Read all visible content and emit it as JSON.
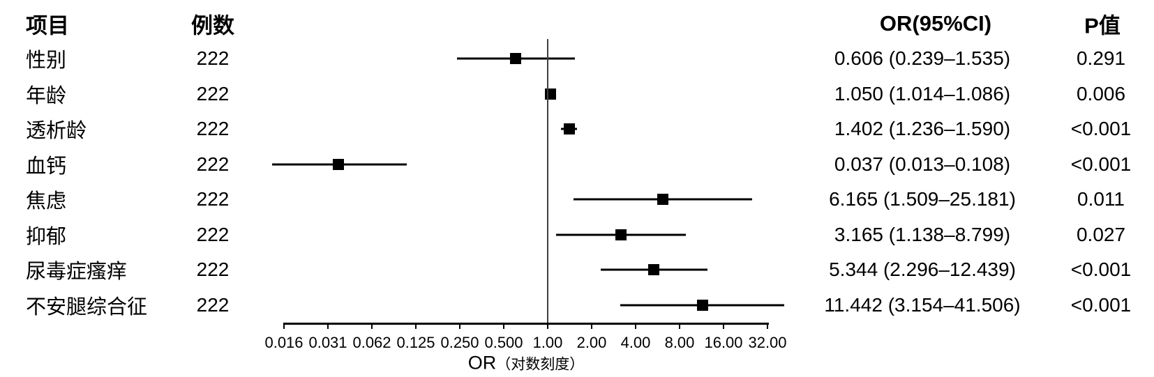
{
  "columns": {
    "item": "项目",
    "n": "例数",
    "or_ci": "OR(95%CI)",
    "p": "P值"
  },
  "rows": [
    {
      "label": "性别",
      "n": "222",
      "or": 0.606,
      "low": 0.239,
      "high": 1.535,
      "or_ci_text": "0.606 (0.239–1.535)",
      "p": "0.291"
    },
    {
      "label": "年龄",
      "n": "222",
      "or": 1.05,
      "low": 1.014,
      "high": 1.086,
      "or_ci_text": "1.050 (1.014–1.086)",
      "p": "0.006"
    },
    {
      "label": "透析龄",
      "n": "222",
      "or": 1.402,
      "low": 1.236,
      "high": 1.59,
      "or_ci_text": "1.402 (1.236–1.590)",
      "p": "<0.001"
    },
    {
      "label": "血钙",
      "n": "222",
      "or": 0.037,
      "low": 0.013,
      "high": 0.108,
      "or_ci_text": "0.037 (0.013–0.108)",
      "p": "<0.001"
    },
    {
      "label": "焦虑",
      "n": "222",
      "or": 6.165,
      "low": 1.509,
      "high": 25.181,
      "or_ci_text": "6.165 (1.509–25.181)",
      "p": "0.011"
    },
    {
      "label": "抑郁",
      "n": "222",
      "or": 3.165,
      "low": 1.138,
      "high": 8.799,
      "or_ci_text": "3.165 (1.138–8.799)",
      "p": "0.027"
    },
    {
      "label": "尿毒症瘙痒",
      "n": "222",
      "or": 5.344,
      "low": 2.296,
      "high": 12.439,
      "or_ci_text": "5.344 (2.296–12.439)",
      "p": "<0.001"
    },
    {
      "label": "不安腿综合征",
      "n": "222",
      "or": 11.442,
      "low": 3.154,
      "high": 41.506,
      "or_ci_text": "11.442 (3.154–41.506)",
      "p": "<0.001"
    }
  ],
  "axis": {
    "tick_values": [
      0.015625,
      0.03125,
      0.0625,
      0.125,
      0.25,
      0.5,
      1,
      2,
      4,
      8,
      16,
      32
    ],
    "tick_labels": [
      "0.016",
      "0.031",
      "0.062",
      "0.125",
      "0.250",
      "0.500",
      "1.00",
      "2.00",
      "4.00",
      "8.00",
      "16.00",
      "32.00"
    ],
    "title_main": "OR",
    "title_sub": "（对数刻度）",
    "reference": 1
  },
  "colors": {
    "marker": "#000000",
    "ci_line": "#000000",
    "reference_line": "#3f3f3f",
    "text": "#000000",
    "background": "#ffffff"
  },
  "chart_data": {
    "type": "scatter",
    "variant": "forest-plot",
    "title": "",
    "columns": [
      "项目",
      "例数",
      "OR(95%CI)",
      "P值"
    ],
    "categories": [
      "性别",
      "年龄",
      "透析龄",
      "血钙",
      "焦虑",
      "抑郁",
      "尿毒症瘙痒",
      "不安腿综合征"
    ],
    "n_cases": [
      222,
      222,
      222,
      222,
      222,
      222,
      222,
      222
    ],
    "or_values": [
      0.606,
      1.05,
      1.402,
      0.037,
      6.165,
      3.165,
      5.344,
      11.442
    ],
    "ci_low": [
      0.239,
      1.014,
      1.236,
      0.013,
      1.509,
      1.138,
      2.296,
      3.154
    ],
    "ci_high": [
      1.535,
      1.086,
      1.59,
      0.108,
      25.181,
      8.799,
      12.439,
      41.506
    ],
    "p_values": [
      "0.291",
      "0.006",
      "<0.001",
      "<0.001",
      "0.011",
      "0.027",
      "<0.001",
      "<0.001"
    ],
    "xlabel": "OR（对数刻度）",
    "x_scale": "log2",
    "x_ticks": [
      0.016,
      0.031,
      0.062,
      0.125,
      0.25,
      0.5,
      1.0,
      2.0,
      4.0,
      8.0,
      16.0,
      32.0
    ],
    "reference_line": 1.0,
    "xlim": [
      0.015625,
      32
    ],
    "grid": false,
    "legend": false
  }
}
